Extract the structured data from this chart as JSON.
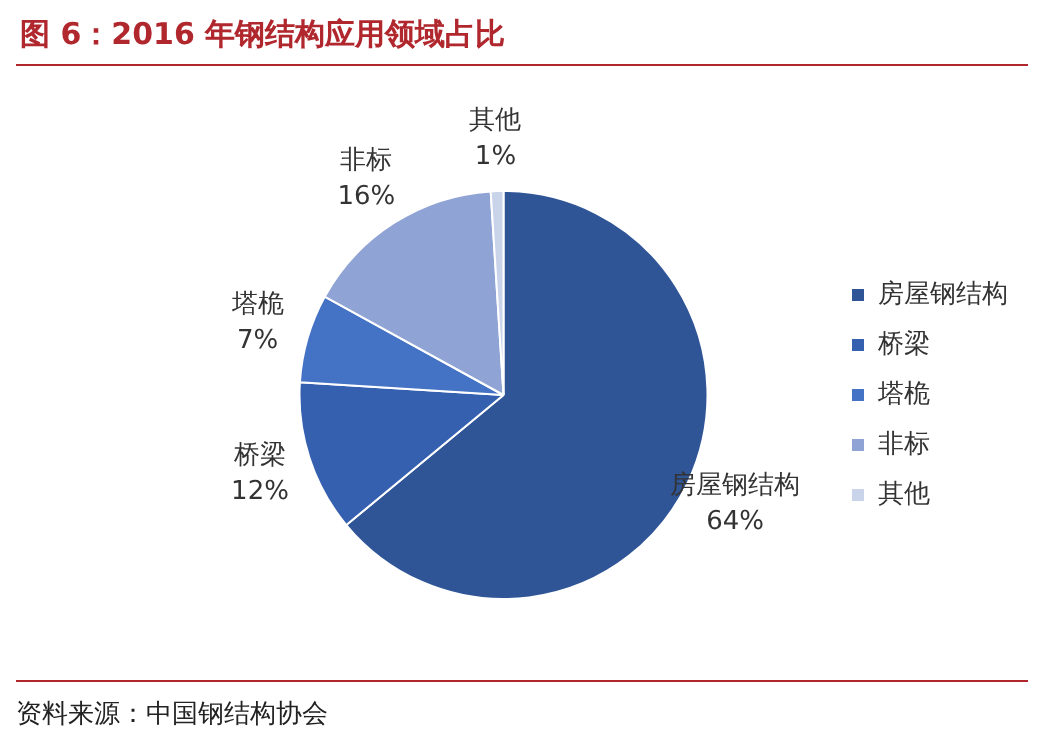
{
  "chart_data": {
    "type": "pie",
    "title": "图 6：2016 年钢结构应用领域占比",
    "categories": [
      "房屋钢结构",
      "桥梁",
      "塔桅",
      "非标",
      "其他"
    ],
    "values": [
      64,
      12,
      7,
      16,
      1
    ],
    "value_labels": [
      "64%",
      "12%",
      "7%",
      "16%",
      "1%"
    ],
    "colors": [
      "#2f5597",
      "#3560b0",
      "#4472c4",
      "#8fa3d4",
      "#c9d3ea"
    ],
    "legend": "right",
    "annotations": [
      "资料来源：中国钢结构协会"
    ]
  }
}
